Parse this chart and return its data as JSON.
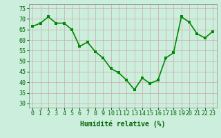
{
  "x": [
    0,
    1,
    2,
    3,
    4,
    5,
    6,
    7,
    8,
    9,
    10,
    11,
    12,
    13,
    14,
    15,
    16,
    17,
    18,
    19,
    20,
    21,
    22,
    23
  ],
  "y": [
    66.5,
    68,
    71,
    68,
    68,
    65,
    57,
    59,
    54.5,
    51.5,
    46.5,
    44.5,
    41,
    36.5,
    42,
    39.5,
    41,
    51.5,
    54,
    71,
    68.5,
    63,
    61,
    64
  ],
  "line_color": "#008800",
  "marker_color": "#008800",
  "bg_color": "#CCEEDD",
  "grid_color": "#BBCCBB",
  "xlabel": "Humidité relative (%)",
  "ylim": [
    28,
    77
  ],
  "yticks": [
    30,
    35,
    40,
    45,
    50,
    55,
    60,
    65,
    70,
    75
  ],
  "xticks": [
    0,
    1,
    2,
    3,
    4,
    5,
    6,
    7,
    8,
    9,
    10,
    11,
    12,
    13,
    14,
    15,
    16,
    17,
    18,
    19,
    20,
    21,
    22,
    23
  ],
  "xlabel_fontsize": 7,
  "tick_fontsize": 6,
  "line_width": 1.2,
  "marker_size": 2.5
}
